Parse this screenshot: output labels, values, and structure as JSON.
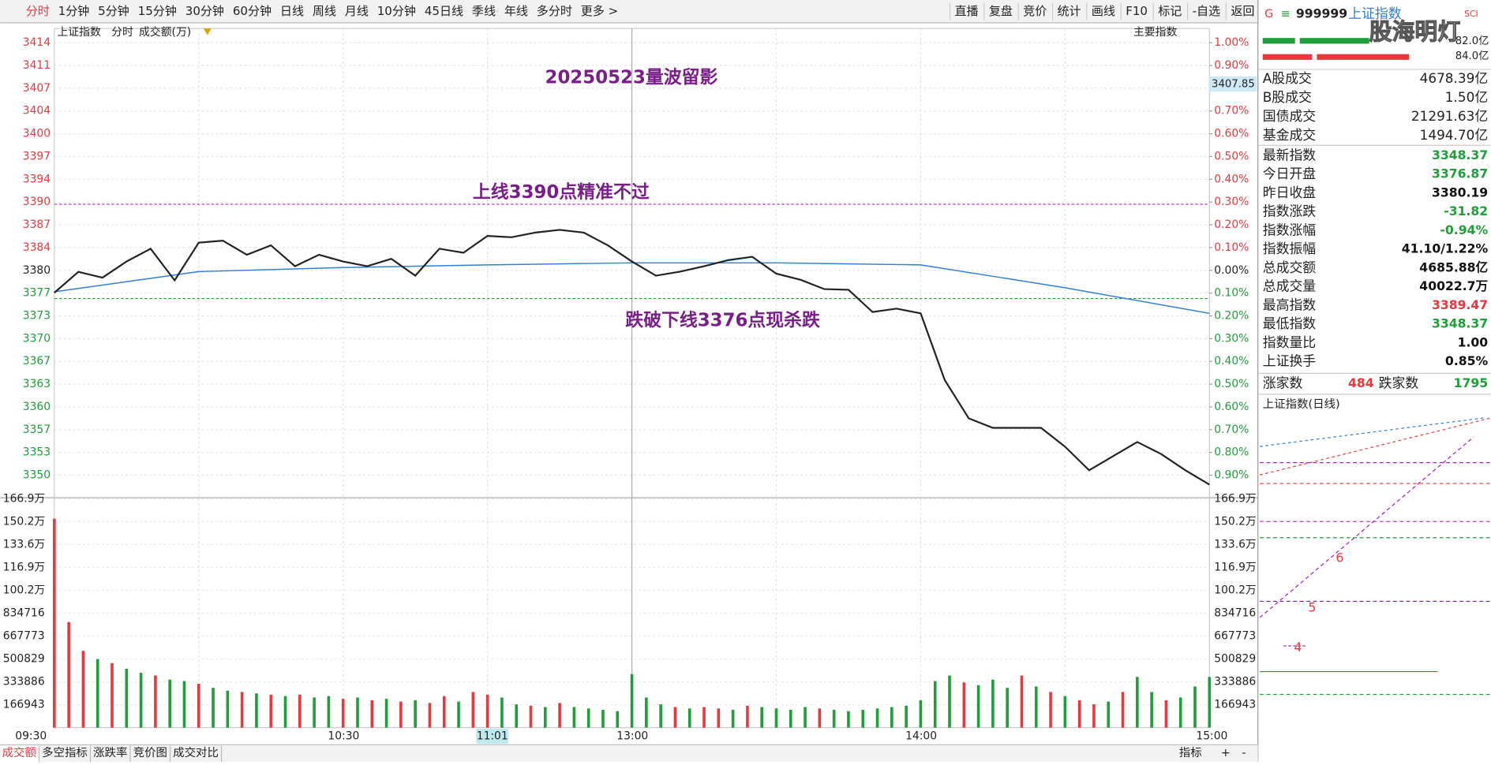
{
  "toolbar": {
    "periods": [
      "分时",
      "1分钟",
      "5分钟",
      "15分钟",
      "30分钟",
      "60分钟",
      "日线",
      "周线",
      "月线",
      "10分钟",
      "45日线",
      "季线",
      "年线",
      "多分时",
      "更多 >"
    ],
    "tools": [
      "直播",
      "复盘",
      "竞价",
      "统计",
      "画线",
      "F10",
      "标记",
      "-自选",
      "返回"
    ]
  },
  "chart_data": {
    "type": "line",
    "title": "20250523量波留影",
    "header": [
      "上证指数",
      "分时",
      "成交额(万)"
    ],
    "panel_label": "主要指数",
    "x_labels": [
      "09:30",
      "10:30",
      "13:00",
      "14:00",
      "15:00"
    ],
    "cursor_time": "11:01",
    "cursor_value": 3407.85,
    "up_color": "#e8383d",
    "down_color": "#1f9e3a",
    "ylim": [
      3346.7,
      3416.1
    ],
    "yticks": [
      {
        "value": 3413.99,
        "label": "3414"
      },
      {
        "value": 3410.61,
        "label": "3411"
      },
      {
        "value": 3407.23,
        "label": "3407"
      },
      {
        "value": 3403.85,
        "label": "3404"
      },
      {
        "value": 3400.47,
        "label": "3400"
      },
      {
        "value": 3397.09,
        "label": "3397"
      },
      {
        "value": 3393.71,
        "label": "3394"
      },
      {
        "value": 3390.33,
        "label": "3390"
      },
      {
        "value": 3386.95,
        "label": "3387"
      },
      {
        "value": 3383.57,
        "label": "3384"
      },
      {
        "value": 3380.19,
        "label": "3380"
      },
      {
        "value": 3376.81,
        "label": "3377"
      },
      {
        "value": 3373.43,
        "label": "3373"
      },
      {
        "value": 3370.05,
        "label": "3370"
      },
      {
        "value": 3366.67,
        "label": "3367"
      },
      {
        "value": 3363.29,
        "label": "3363"
      },
      {
        "value": 3359.91,
        "label": "3360"
      },
      {
        "value": 3356.53,
        "label": "3357"
      },
      {
        "value": 3353.15,
        "label": "3353"
      },
      {
        "value": 3349.77,
        "label": "3350"
      }
    ],
    "y2lim": [
      -0.9908,
      1.0624
    ],
    "y2ticks": [
      {
        "value": 1.0,
        "label": "1.00%"
      },
      {
        "value": 0.9,
        "label": "0.90%"
      },
      {
        "value": 0.8,
        "label": "0.80%"
      },
      {
        "value": 0.7,
        "label": "0.70%"
      },
      {
        "value": 0.6,
        "label": "0.60%"
      },
      {
        "value": 0.5,
        "label": "0.50%"
      },
      {
        "value": 0.4,
        "label": "0.40%"
      },
      {
        "value": 0.3,
        "label": "0.30%"
      },
      {
        "value": 0.2,
        "label": "0.20%"
      },
      {
        "value": 0.1,
        "label": "0.10%"
      },
      {
        "value": 0,
        "label": "0.00%"
      },
      {
        "value": -0.1,
        "label": "0.10%"
      },
      {
        "value": -0.2,
        "label": "0.20%"
      },
      {
        "value": -0.3,
        "label": "0.30%"
      },
      {
        "value": -0.4,
        "label": "0.40%"
      },
      {
        "value": -0.5,
        "label": "0.50%"
      },
      {
        "value": -0.6,
        "label": "0.60%"
      },
      {
        "value": -0.7,
        "label": "0.70%"
      },
      {
        "value": -0.8,
        "label": "0.80%"
      },
      {
        "value": -0.9,
        "label": "0.90%"
      }
    ],
    "price": {
      "color": "#222222",
      "values": [
        3376.87,
        3379.97,
        3379.1,
        3381.5,
        3383.4,
        3378.7,
        3384.3,
        3384.6,
        3382.5,
        3383.9,
        3380.8,
        3382.5,
        3381.5,
        3380.8,
        3381.9,
        3379.4,
        3383.4,
        3382.8,
        3385.3,
        3385.1,
        3385.8,
        3386.2,
        3385.8,
        3383.9,
        3381.5,
        3379.4,
        3380.0,
        3380.8,
        3381.7,
        3382.2,
        3379.7,
        3378.8,
        3377.4,
        3377.3,
        3374.0,
        3374.5,
        3373.8,
        3363.9,
        3358.2,
        3356.8,
        3356.8,
        3356.8,
        3354.0,
        3350.5,
        3352.6,
        3354.7,
        3352.9,
        3350.5,
        3348.37
      ]
    },
    "average": {
      "color": "#2f7fd8",
      "values": [
        3377.0,
        3380.0,
        3380.6,
        3381.0,
        3381.3,
        3381.3,
        3381.0,
        3377.6,
        3373.8
      ]
    },
    "annotations": [
      {
        "text": "上线3390点精准不过",
        "level": 3390,
        "color": "#c03cc8"
      },
      {
        "text": "跌破下线3376点现杀跌",
        "level": 3376,
        "color": "#1f9e3a"
      }
    ],
    "volume": {
      "ylim": [
        0,
        1669430
      ],
      "yticks": [
        {
          "value": 1669430,
          "label": "166.9万"
        },
        {
          "value": 1502487,
          "label": "150.2万"
        },
        {
          "value": 1335544,
          "label": "133.6万"
        },
        {
          "value": 1168601,
          "label": "116.9万"
        },
        {
          "value": 1001658,
          "label": "100.2万"
        },
        834716,
        667773,
        500829,
        333886,
        166943
      ],
      "values": [
        1524000,
        770000,
        560000,
        500000,
        470000,
        430000,
        400000,
        380000,
        350000,
        340000,
        320000,
        290000,
        270000,
        260000,
        250000,
        240000,
        230000,
        240000,
        220000,
        230000,
        210000,
        220000,
        200000,
        210000,
        190000,
        200000,
        180000,
        230000,
        190000,
        260000,
        240000,
        220000,
        170000,
        160000,
        150000,
        180000,
        150000,
        140000,
        130000,
        120000,
        390000,
        220000,
        170000,
        150000,
        140000,
        150000,
        140000,
        130000,
        160000,
        150000,
        140000,
        130000,
        150000,
        140000,
        130000,
        120000,
        130000,
        140000,
        150000,
        160000,
        200000,
        340000,
        380000,
        330000,
        310000,
        350000,
        290000,
        380000,
        300000,
        260000,
        230000,
        200000,
        170000,
        190000,
        260000,
        370000,
        260000,
        200000,
        220000,
        300000,
        370000
      ],
      "colors": [
        "#e8383d",
        "#e8383d",
        "#e8383d",
        "#1f9e3a",
        "#e8383d",
        "#1f9e3a",
        "#1f9e3a",
        "#e8383d",
        "#1f9e3a",
        "#1f9e3a",
        "#e8383d",
        "#1f9e3a",
        "#1f9e3a",
        "#e8383d",
        "#1f9e3a",
        "#e8383d",
        "#1f9e3a",
        "#e8383d",
        "#1f9e3a",
        "#1f9e3a",
        "#e8383d",
        "#1f9e3a",
        "#e8383d",
        "#1f9e3a",
        "#e8383d",
        "#1f9e3a",
        "#e8383d",
        "#e8383d",
        "#1f9e3a",
        "#e8383d",
        "#e8383d",
        "#1f9e3a",
        "#1f9e3a",
        "#e8383d",
        "#1f9e3a",
        "#e8383d",
        "#1f9e3a",
        "#1f9e3a",
        "#1f9e3a",
        "#1f9e3a",
        "#1f9e3a",
        "#1f9e3a",
        "#1f9e3a",
        "#e8383d",
        "#1f9e3a",
        "#e8383d",
        "#e8383d",
        "#1f9e3a",
        "#e8383d",
        "#1f9e3a",
        "#1f9e3a",
        "#1f9e3a",
        "#1f9e3a",
        "#e8383d",
        "#1f9e3a",
        "#1f9e3a",
        "#1f9e3a",
        "#1f9e3a",
        "#1f9e3a",
        "#1f9e3a",
        "#1f9e3a",
        "#1f9e3a",
        "#1f9e3a",
        "#e8383d",
        "#1f9e3a",
        "#1f9e3a",
        "#1f9e3a",
        "#e8383d",
        "#1f9e3a",
        "#e8383d",
        "#1f9e3a",
        "#e8383d",
        "#e8383d",
        "#1f9e3a",
        "#e8383d",
        "#1f9e3a",
        "#1f9e3a",
        "#e8383d",
        "#1f9e3a",
        "#1f9e3a",
        "#1f9e3a"
      ]
    }
  },
  "side_panel": {
    "header": {
      "flag": "G",
      "menu": "≡",
      "code": "999999",
      "name": "上证指数",
      "tag": "SCI"
    },
    "watermark": "股海明灯",
    "flow": [
      "82.0亿",
      "84.0亿"
    ],
    "turnover": [
      {
        "label": "A股成交",
        "value": "4678.39亿"
      },
      {
        "label": "B股成交",
        "value": "1.50亿"
      },
      {
        "label": "国债成交",
        "value": "21291.63亿"
      },
      {
        "label": "基金成交",
        "value": "1494.70亿"
      }
    ],
    "stats": [
      {
        "label": "最新指数",
        "value": "3348.37",
        "color": "#1f9e3a"
      },
      {
        "label": "今日开盘",
        "value": "3376.87",
        "color": "#1f9e3a"
      },
      {
        "label": "昨日收盘",
        "value": "3380.19",
        "color": "#111111"
      },
      {
        "label": "指数涨跌",
        "value": "-31.82",
        "color": "#1f9e3a"
      },
      {
        "label": "指数涨幅",
        "value": "-0.94%",
        "color": "#1f9e3a"
      },
      {
        "label": "指数振幅",
        "value": "41.10/1.22%",
        "color": "#111111"
      },
      {
        "label": "总成交额",
        "value": "4685.88亿",
        "color": "#111111"
      },
      {
        "label": "总成交量",
        "value": "40022.7万",
        "color": "#111111"
      },
      {
        "label": "最高指数",
        "value": "3389.47",
        "color": "#e8383d"
      },
      {
        "label": "最低指数",
        "value": "3348.37",
        "color": "#1f9e3a"
      },
      {
        "label": "指数量比",
        "value": "1.00",
        "color": "#111111"
      },
      {
        "label": "上证换手",
        "value": "0.85%",
        "color": "#111111"
      }
    ],
    "breadth": {
      "up_label": "涨家数",
      "up": "484",
      "down_label": "跌家数",
      "down": "1795"
    },
    "daily_title": "上证指数(日线)",
    "wave_labels": [
      "6",
      "5",
      "4"
    ]
  },
  "bottom_tabs": [
    "成交额",
    "多空指标",
    "涨跌率",
    "竞价图",
    "成交对比"
  ],
  "bottom_tools": [
    "指标",
    "+",
    "-"
  ]
}
